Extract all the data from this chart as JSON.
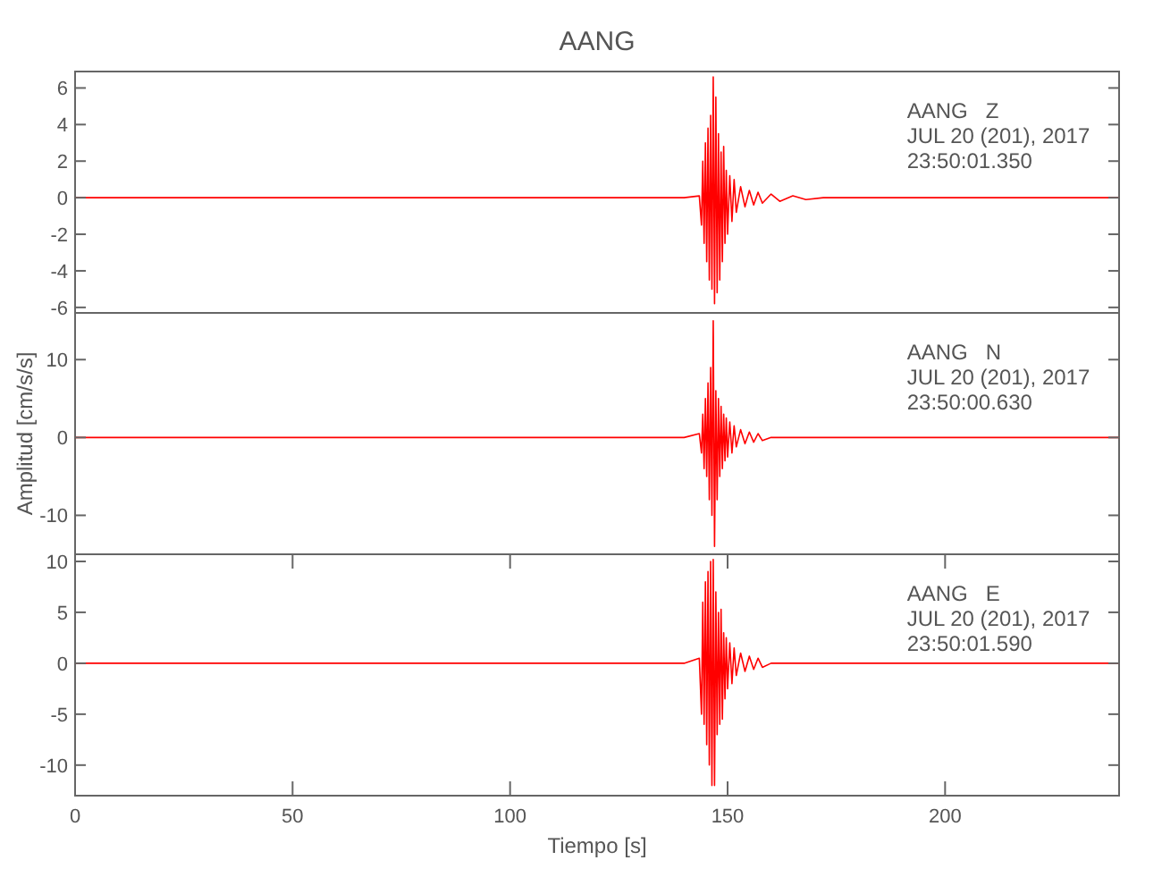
{
  "chart_data": [
    {
      "type": "line",
      "title": "AANG",
      "annotations": [
        "AANG   Z",
        "JUL 20 (201), 2017",
        "23:50:01.350"
      ],
      "xlim": [
        0,
        240
      ],
      "ylim": [
        -6.3,
        6.9
      ],
      "yticks": [
        -6,
        -4,
        -2,
        0,
        2,
        4,
        6
      ],
      "tick_labels": "y",
      "grid": false,
      "series": [
        {
          "color": "#ff0000",
          "x": [
            0,
            140,
            143.5,
            144,
            144.3,
            144.6,
            144.9,
            145.2,
            145.5,
            145.8,
            146.1,
            146.4,
            146.7,
            147,
            147.3,
            147.6,
            147.9,
            148.2,
            148.5,
            148.8,
            149.1,
            149.4,
            149.7,
            150,
            150.5,
            151,
            151.5,
            152,
            153,
            154,
            155,
            156,
            157,
            158,
            160,
            162,
            165,
            168,
            172,
            240
          ],
          "values": [
            0,
            0,
            0.1,
            -1.5,
            2,
            -2.5,
            3,
            -3.5,
            3.8,
            -4.5,
            4.5,
            -5,
            6.6,
            -5.8,
            5.5,
            -5.2,
            3.5,
            -4.5,
            2.5,
            -3.5,
            2.8,
            -2.5,
            1.5,
            -2,
            1.2,
            -1.3,
            1,
            -0.8,
            0.6,
            -0.5,
            0.4,
            -0.4,
            0.3,
            -0.3,
            0.2,
            -0.2,
            0.1,
            -0.1,
            0,
            0
          ]
        }
      ]
    },
    {
      "type": "line",
      "ylabel": "Amplitud [cm/s/s]",
      "annotations": [
        "AANG   N",
        "JUL 20 (201), 2017",
        "23:50:00.630"
      ],
      "xlim": [
        0,
        240
      ],
      "ylim": [
        -15,
        16
      ],
      "yticks": [
        -10,
        0,
        10
      ],
      "tick_labels": "y",
      "grid": false,
      "series": [
        {
          "color": "#ff0000",
          "x": [
            0,
            140,
            143.5,
            144,
            144.3,
            144.6,
            144.9,
            145.2,
            145.5,
            145.8,
            146.1,
            146.4,
            146.7,
            147,
            147.3,
            147.6,
            147.9,
            148.2,
            148.5,
            148.8,
            149.1,
            149.4,
            149.7,
            150,
            150.5,
            151,
            151.5,
            152,
            153,
            154,
            155,
            156,
            157,
            158,
            160,
            240
          ],
          "values": [
            0,
            0,
            0.5,
            -2,
            3,
            -4,
            5,
            -5,
            7,
            -8,
            9,
            -10,
            15,
            -14,
            6,
            -8,
            5,
            -5,
            4,
            -4,
            3,
            -3,
            2.5,
            -2.5,
            2,
            -2,
            1.5,
            -1.2,
            1,
            -0.8,
            0.7,
            -0.6,
            0.5,
            -0.4,
            0,
            0
          ]
        }
      ]
    },
    {
      "type": "line",
      "xlabel": "Tiempo [s]",
      "annotations": [
        "AANG   E",
        "JUL 20 (201), 2017",
        "23:50:01.590"
      ],
      "xlim": [
        0,
        240
      ],
      "xticks": [
        0,
        50,
        100,
        150,
        200
      ],
      "ylim": [
        -13,
        10.7
      ],
      "yticks": [
        -10,
        -5,
        0,
        5,
        10
      ],
      "grid": false,
      "series": [
        {
          "color": "#ff0000",
          "x": [
            0,
            140,
            143.5,
            144,
            144.3,
            144.6,
            144.9,
            145.2,
            145.5,
            145.8,
            146.1,
            146.4,
            146.7,
            147,
            147.3,
            147.6,
            147.9,
            148.2,
            148.5,
            148.8,
            149.1,
            149.4,
            149.7,
            150,
            150.5,
            151,
            151.5,
            152,
            153,
            154,
            155,
            156,
            157,
            158,
            160,
            240
          ],
          "values": [
            0,
            0,
            0.5,
            -5,
            6,
            -6,
            8,
            -8,
            9,
            -10,
            10,
            -12,
            10.2,
            -12,
            7,
            -7,
            5,
            -6,
            5.3,
            -5.5,
            3,
            -3.5,
            2.5,
            -2.5,
            2,
            -2,
            1.5,
            -1.2,
            1,
            -0.8,
            0.7,
            -0.6,
            0.5,
            -0.4,
            0,
            0
          ]
        }
      ]
    }
  ]
}
